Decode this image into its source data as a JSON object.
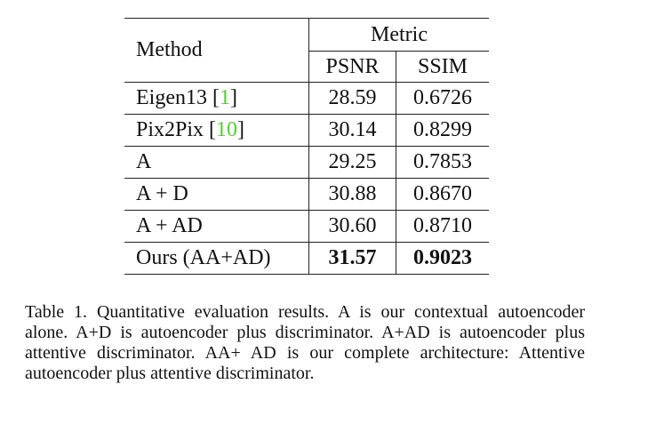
{
  "table": {
    "header": {
      "method": "Method",
      "metric": "Metric",
      "psnr": "PSNR",
      "ssim": "SSIM"
    },
    "rows": [
      {
        "name": "Eigen13 [",
        "cite": "1",
        "close": "]",
        "psnr": "28.59",
        "ssim": "0.6726"
      },
      {
        "name": "Pix2Pix [",
        "cite": "10",
        "close": "]",
        "psnr": "30.14",
        "ssim": "0.8299"
      },
      {
        "name": "A",
        "cite": "",
        "close": "",
        "psnr": "29.25",
        "ssim": "0.7853"
      },
      {
        "name": "A + D",
        "cite": "",
        "close": "",
        "psnr": "30.88",
        "ssim": "0.8670"
      },
      {
        "name": "A + AD",
        "cite": "",
        "close": "",
        "psnr": "30.60",
        "ssim": "0.8710"
      },
      {
        "name": "Ours (AA+AD)",
        "cite": "",
        "close": "",
        "psnr": "31.57",
        "ssim": "0.9023"
      }
    ]
  },
  "caption": "Table 1. Quantitative evaluation results.  A is our contextual autoencoder alone. A+D is autoencoder plus discriminator. A+AD is autoencoder plus attentive discriminator. AA+ AD is our complete architecture: Attentive autoencoder plus attentive discriminator.",
  "colors": {
    "citation": "#4bd12f"
  }
}
